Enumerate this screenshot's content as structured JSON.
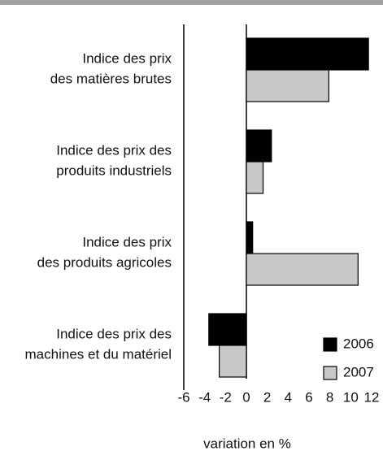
{
  "chart_data": {
    "type": "hbar",
    "categories": [
      "Indice des prix\ndes matières brutes",
      "Indice des prix des\nproduits industriels",
      "Indice des prix\ndes produits agricoles",
      "Indice des prix des\nmachines et du matériel"
    ],
    "series": [
      {
        "name": "2006",
        "color": "#000000",
        "values": [
          11.7,
          2.4,
          0.6,
          -3.6
        ]
      },
      {
        "name": "2007",
        "color": "#c8c8c8",
        "values": [
          7.9,
          1.6,
          10.7,
          -2.6
        ]
      }
    ],
    "xlim": [
      -6,
      12
    ],
    "xticks": [
      -6,
      -4,
      -2,
      0,
      2,
      4,
      6,
      8,
      10,
      12
    ],
    "xlabel": "variation en %",
    "legend": "lower right"
  }
}
